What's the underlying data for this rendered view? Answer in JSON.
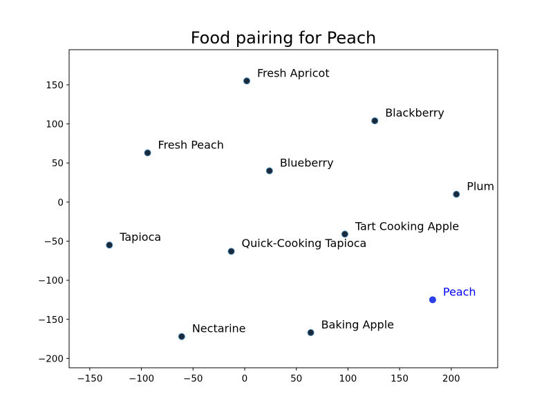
{
  "chart_data": {
    "type": "scatter",
    "title": "Food pairing for Peach",
    "xlabel": "",
    "ylabel": "",
    "xlim": [
      -170,
      245
    ],
    "ylim": [
      -212,
      195
    ],
    "xticks": [
      -150,
      -100,
      -50,
      0,
      50,
      100,
      150,
      200
    ],
    "yticks": [
      -200,
      -150,
      -100,
      -50,
      0,
      50,
      100,
      150
    ],
    "grid": false,
    "colors": {
      "point": "#1b2a3a",
      "point_edge": "#3d7fb0",
      "highlight": "#2a3fe8",
      "highlight_label": "#0000ff"
    },
    "points": [
      {
        "label": "Fresh Apricot",
        "x": 2,
        "y": 155
      },
      {
        "label": "Blackberry",
        "x": 126,
        "y": 104
      },
      {
        "label": "Fresh Peach",
        "x": -94,
        "y": 63
      },
      {
        "label": "Blueberry",
        "x": 24,
        "y": 40
      },
      {
        "label": "Plum",
        "x": 205,
        "y": 10
      },
      {
        "label": "Tart Cooking Apple",
        "x": 97,
        "y": -41
      },
      {
        "label": "Tapioca",
        "x": -131,
        "y": -55
      },
      {
        "label": "Quick-Cooking Tapioca",
        "x": -13,
        "y": -63
      },
      {
        "label": "Peach",
        "x": 182,
        "y": -125,
        "highlight": true
      },
      {
        "label": "Baking Apple",
        "x": 64,
        "y": -167
      },
      {
        "label": "Nectarine",
        "x": -61,
        "y": -172
      }
    ]
  }
}
